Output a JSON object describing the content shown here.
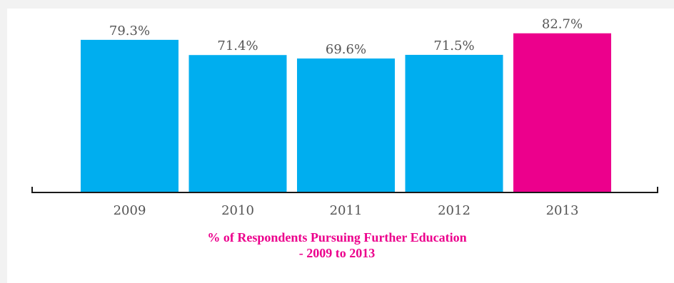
{
  "chart_data": {
    "type": "bar",
    "categories": [
      "2009",
      "2010",
      "2011",
      "2012",
      "2013"
    ],
    "values": [
      79.3,
      71.4,
      69.6,
      71.5,
      82.7
    ],
    "value_labels": [
      "79.3%",
      "71.4%",
      "69.6%",
      "71.5%",
      "82.7%"
    ],
    "colors": [
      "#00aeef",
      "#00aeef",
      "#00aeef",
      "#00aeef",
      "#ec008c"
    ],
    "title_lines": [
      "% of Respondents Pursuing Further Education",
      "- 2009 to 2013"
    ],
    "xlabel": "",
    "ylabel": "",
    "grid": false,
    "legend": "none"
  }
}
